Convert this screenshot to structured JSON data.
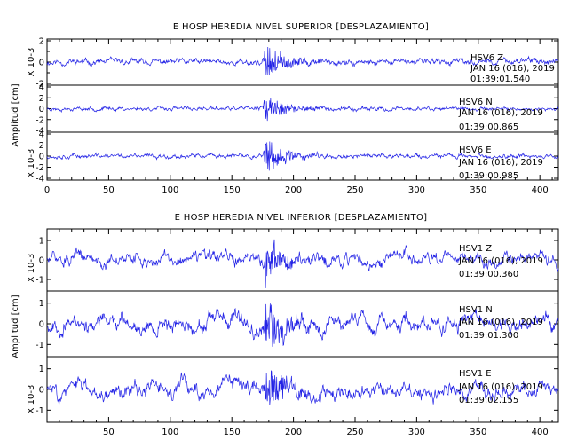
{
  "chart_data": [
    {
      "type": "line",
      "title": "E HOSP HEREDIA NIVEL SUPERIOR [DESPLAZAMIENTO]",
      "ylabel": "Amplitud [cm]",
      "yunit": "X 10-3",
      "xlim": [
        0,
        415
      ],
      "xticks": [
        0,
        50,
        100,
        150,
        200,
        250,
        300,
        350,
        400
      ],
      "xtick_labels": [
        "0",
        "50",
        "100",
        "150",
        "200",
        "250",
        "300",
        "350",
        "400"
      ],
      "line_color": "#2323e6",
      "panels": [
        {
          "channel": "HSV6 Z",
          "date": "JAN 16 (016), 2019",
          "time": "01:39:01.540",
          "ylim": [
            -2,
            2
          ],
          "yticks": [
            -2,
            0,
            2
          ],
          "yminor": [
            -1,
            1
          ],
          "event_time": 177,
          "base_amp": 0.35,
          "burst_amp": 1.8,
          "smooth": 0.85,
          "seed": 11
        },
        {
          "channel": "HSV6 N",
          "date": "JAN 16 (016), 2019",
          "time": "01:39:00.865",
          "ylim": [
            -4,
            4
          ],
          "yticks": [
            -4,
            -2,
            0,
            2,
            4
          ],
          "yminor": [],
          "event_time": 177,
          "base_amp": 0.45,
          "burst_amp": 3.3,
          "smooth": 0.8,
          "seed": 23
        },
        {
          "channel": "HSV6 E",
          "date": "JAN 16 (016), 2019",
          "time": "01:39:00.985",
          "ylim": [
            -4,
            4
          ],
          "yticks": [
            -4,
            -2,
            0,
            2,
            4
          ],
          "yminor": [],
          "event_time": 177,
          "base_amp": 0.5,
          "burst_amp": 3.6,
          "smooth": 0.8,
          "seed": 37
        }
      ]
    },
    {
      "type": "line",
      "title": "E HOSP HEREDIA NIVEL INFERIOR [DESPLAZAMIENTO]",
      "ylabel": "Amplitud [cm]",
      "yunit": "X 10-3",
      "xlim": [
        0,
        415
      ],
      "xticks": [
        50,
        100,
        150,
        200,
        250,
        300,
        350,
        400
      ],
      "xtick_labels": [
        "50",
        "100",
        "150",
        "200",
        "250",
        "300",
        "350",
        "400"
      ],
      "line_color": "#2323e6",
      "panels": [
        {
          "channel": "HSV1 Z",
          "date": "JAN 16 (016), 2019",
          "time": "01:39:00.360",
          "ylim": [
            -1.5,
            1.5
          ],
          "yticks": [
            -1,
            0,
            1
          ],
          "yminor": [],
          "event_time": 177,
          "base_amp": 0.4,
          "burst_amp": 1.2,
          "smooth": 0.9,
          "seed": 51
        },
        {
          "channel": "HSV1 N",
          "date": "JAN 16 (016), 2019",
          "time": "01:39:01.300",
          "ylim": [
            -1.5,
            1.5
          ],
          "yticks": [
            -1,
            0,
            1
          ],
          "yminor": [],
          "event_time": 177,
          "base_amp": 0.45,
          "burst_amp": 1.3,
          "smooth": 0.9,
          "seed": 67
        },
        {
          "channel": "HSV1 E",
          "date": "JAN 16 (016), 2019",
          "time": "01:39:02.155",
          "ylim": [
            -1.5,
            1.5
          ],
          "yticks": [
            -1,
            0,
            1
          ],
          "yminor": [],
          "event_time": 177,
          "base_amp": 0.45,
          "burst_amp": 1.3,
          "smooth": 0.9,
          "seed": 83
        }
      ]
    }
  ]
}
